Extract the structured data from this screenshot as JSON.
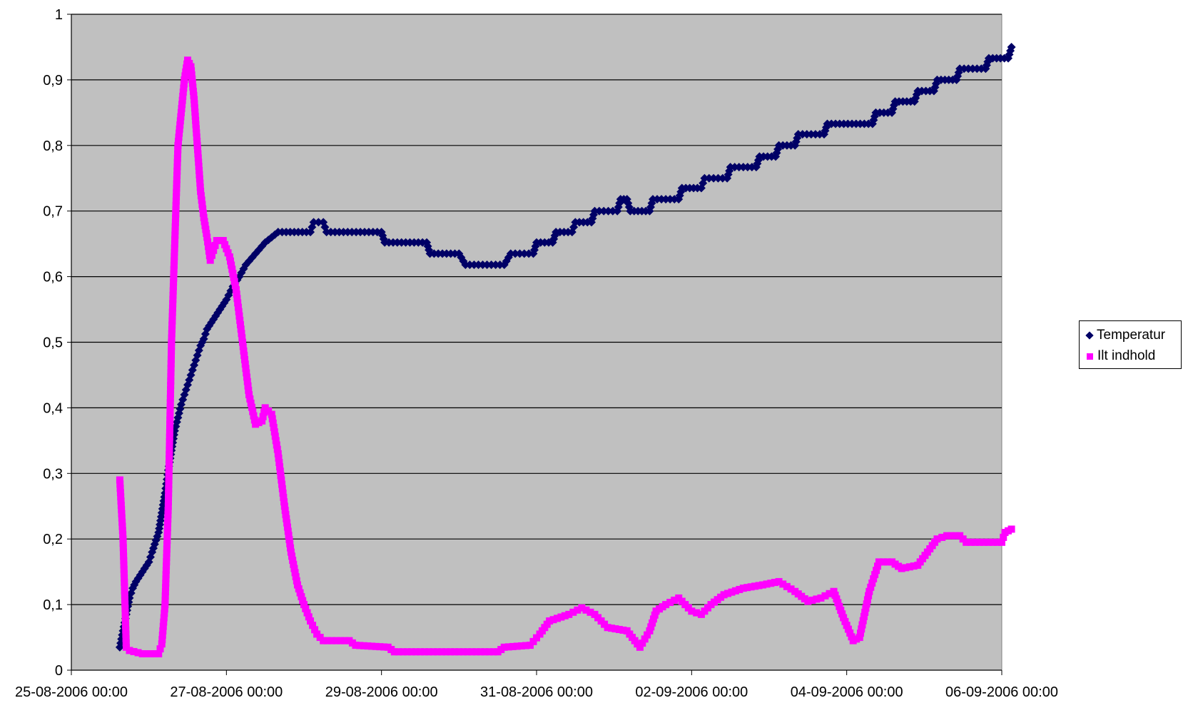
{
  "chart_data": {
    "type": "line",
    "title": "",
    "xlabel": "",
    "ylabel": "",
    "y_ticks": [
      "0",
      "0,1",
      "0,2",
      "0,3",
      "0,4",
      "0,5",
      "0,6",
      "0,7",
      "0,8",
      "0,9",
      "1"
    ],
    "ylim": [
      0,
      1
    ],
    "x_ticks": [
      "25-08-2006 00:00",
      "27-08-2006 00:00",
      "29-08-2006 00:00",
      "31-08-2006 00:00",
      "02-09-2006 00:00",
      "04-09-2006 00:00",
      "06-09-2006 00:00"
    ],
    "xlim": [
      "25-08-2006 00:00",
      "06-09-2006 00:00"
    ],
    "grid": true,
    "plot_background": "#c0c0c0",
    "legend_position": "right",
    "series": [
      {
        "name": "Temperatur",
        "color": "#000066",
        "marker": "diamond",
        "points": [
          [
            "25-08-2006 15:00",
            0.035
          ],
          [
            "25-08-2006 16:00",
            0.06
          ],
          [
            "25-08-2006 17:00",
            0.085
          ],
          [
            "25-08-2006 18:00",
            0.11
          ],
          [
            "25-08-2006 19:00",
            0.125
          ],
          [
            "25-08-2006 20:00",
            0.135
          ],
          [
            "25-08-2006 22:00",
            0.15
          ],
          [
            "26-08-2006 00:00",
            0.165
          ],
          [
            "26-08-2006 01:00",
            0.18
          ],
          [
            "26-08-2006 03:00",
            0.21
          ],
          [
            "26-08-2006 04:00",
            0.24
          ],
          [
            "26-08-2006 05:00",
            0.27
          ],
          [
            "26-08-2006 06:00",
            0.305
          ],
          [
            "26-08-2006 07:00",
            0.335
          ],
          [
            "26-08-2006 08:00",
            0.365
          ],
          [
            "26-08-2006 09:00",
            0.385
          ],
          [
            "26-08-2006 10:00",
            0.405
          ],
          [
            "26-08-2006 11:00",
            0.42
          ],
          [
            "26-08-2006 12:00",
            0.435
          ],
          [
            "26-08-2006 13:00",
            0.45
          ],
          [
            "26-08-2006 14:00",
            0.465
          ],
          [
            "26-08-2006 15:00",
            0.48
          ],
          [
            "26-08-2006 16:00",
            0.495
          ],
          [
            "26-08-2006 17:00",
            0.505
          ],
          [
            "26-08-2006 18:00",
            0.52
          ],
          [
            "26-08-2006 20:00",
            0.535
          ],
          [
            "26-08-2006 22:00",
            0.55
          ],
          [
            "27-08-2006 00:00",
            0.565
          ],
          [
            "27-08-2006 02:00",
            0.585
          ],
          [
            "27-08-2006 04:00",
            0.6
          ],
          [
            "27-08-2006 06:00",
            0.618
          ],
          [
            "27-08-2006 09:00",
            0.635
          ],
          [
            "27-08-2006 12:00",
            0.652
          ],
          [
            "27-08-2006 16:00",
            0.668
          ],
          [
            "28-08-2006 02:00",
            0.668
          ],
          [
            "28-08-2006 03:00",
            0.683
          ],
          [
            "28-08-2006 06:00",
            0.683
          ],
          [
            "28-08-2006 07:00",
            0.668
          ],
          [
            "29-08-2006 00:00",
            0.668
          ],
          [
            "29-08-2006 01:00",
            0.652
          ],
          [
            "29-08-2006 14:00",
            0.652
          ],
          [
            "29-08-2006 15:00",
            0.635
          ],
          [
            "30-08-2006 00:00",
            0.635
          ],
          [
            "30-08-2006 02:00",
            0.618
          ],
          [
            "30-08-2006 14:00",
            0.618
          ],
          [
            "30-08-2006 16:00",
            0.635
          ],
          [
            "30-08-2006 23:00",
            0.635
          ],
          [
            "31-08-2006 00:00",
            0.652
          ],
          [
            "31-08-2006 05:00",
            0.652
          ],
          [
            "31-08-2006 06:00",
            0.668
          ],
          [
            "31-08-2006 11:00",
            0.668
          ],
          [
            "31-08-2006 12:00",
            0.683
          ],
          [
            "31-08-2006 17:00",
            0.683
          ],
          [
            "31-08-2006 18:00",
            0.7
          ],
          [
            "01-09-2006 01:00",
            0.7
          ],
          [
            "01-09-2006 02:00",
            0.718
          ],
          [
            "01-09-2006 04:00",
            0.718
          ],
          [
            "01-09-2006 05:00",
            0.7
          ],
          [
            "01-09-2006 11:00",
            0.7
          ],
          [
            "01-09-2006 12:00",
            0.718
          ],
          [
            "01-09-2006 20:00",
            0.718
          ],
          [
            "01-09-2006 21:00",
            0.735
          ],
          [
            "02-09-2006 03:00",
            0.735
          ],
          [
            "02-09-2006 04:00",
            0.75
          ],
          [
            "02-09-2006 11:00",
            0.75
          ],
          [
            "02-09-2006 12:00",
            0.767
          ],
          [
            "02-09-2006 20:00",
            0.767
          ],
          [
            "02-09-2006 21:00",
            0.783
          ],
          [
            "03-09-2006 02:00",
            0.783
          ],
          [
            "03-09-2006 03:00",
            0.8
          ],
          [
            "03-09-2006 08:00",
            0.8
          ],
          [
            "03-09-2006 09:00",
            0.817
          ],
          [
            "03-09-2006 17:00",
            0.817
          ],
          [
            "03-09-2006 18:00",
            0.833
          ],
          [
            "04-09-2006 08:00",
            0.833
          ],
          [
            "04-09-2006 09:00",
            0.85
          ],
          [
            "04-09-2006 14:00",
            0.85
          ],
          [
            "04-09-2006 15:00",
            0.867
          ],
          [
            "04-09-2006 21:00",
            0.867
          ],
          [
            "04-09-2006 22:00",
            0.883
          ],
          [
            "05-09-2006 03:00",
            0.883
          ],
          [
            "05-09-2006 04:00",
            0.9
          ],
          [
            "05-09-2006 10:00",
            0.9
          ],
          [
            "05-09-2006 11:00",
            0.917
          ],
          [
            "05-09-2006 19:00",
            0.917
          ],
          [
            "05-09-2006 20:00",
            0.933
          ],
          [
            "06-09-2006 02:00",
            0.933
          ],
          [
            "06-09-2006 03:00",
            0.95
          ]
        ]
      },
      {
        "name": "Ilt indhold",
        "color": "#ff00ff",
        "marker": "square",
        "points": [
          [
            "25-08-2006 15:00",
            0.29
          ],
          [
            "25-08-2006 16:00",
            0.2
          ],
          [
            "25-08-2006 17:00",
            0.035
          ],
          [
            "25-08-2006 18:00",
            0.03
          ],
          [
            "25-08-2006 22:00",
            0.025
          ],
          [
            "26-08-2006 03:00",
            0.025
          ],
          [
            "26-08-2006 04:00",
            0.04
          ],
          [
            "26-08-2006 05:00",
            0.1
          ],
          [
            "26-08-2006 06:00",
            0.25
          ],
          [
            "26-08-2006 07:00",
            0.5
          ],
          [
            "26-08-2006 08:00",
            0.65
          ],
          [
            "26-08-2006 09:00",
            0.8
          ],
          [
            "26-08-2006 10:00",
            0.85
          ],
          [
            "26-08-2006 11:00",
            0.9
          ],
          [
            "26-08-2006 12:00",
            0.93
          ],
          [
            "26-08-2006 13:00",
            0.92
          ],
          [
            "26-08-2006 14:00",
            0.87
          ],
          [
            "26-08-2006 15:00",
            0.8
          ],
          [
            "26-08-2006 16:00",
            0.73
          ],
          [
            "26-08-2006 17:00",
            0.69
          ],
          [
            "26-08-2006 18:00",
            0.66
          ],
          [
            "26-08-2006 19:00",
            0.625
          ],
          [
            "26-08-2006 20:00",
            0.64
          ],
          [
            "26-08-2006 21:00",
            0.655
          ],
          [
            "26-08-2006 23:00",
            0.655
          ],
          [
            "27-08-2006 01:00",
            0.63
          ],
          [
            "27-08-2006 03:00",
            0.58
          ],
          [
            "27-08-2006 05:00",
            0.5
          ],
          [
            "27-08-2006 07:00",
            0.42
          ],
          [
            "27-08-2006 09:00",
            0.375
          ],
          [
            "27-08-2006 11:00",
            0.38
          ],
          [
            "27-08-2006 12:00",
            0.4
          ],
          [
            "27-08-2006 14:00",
            0.39
          ],
          [
            "27-08-2006 16:00",
            0.33
          ],
          [
            "27-08-2006 18:00",
            0.25
          ],
          [
            "27-08-2006 20:00",
            0.18
          ],
          [
            "27-08-2006 22:00",
            0.13
          ],
          [
            "28-08-2006 00:00",
            0.1
          ],
          [
            "28-08-2006 02:00",
            0.075
          ],
          [
            "28-08-2006 04:00",
            0.055
          ],
          [
            "28-08-2006 06:00",
            0.045
          ],
          [
            "28-08-2006 14:00",
            0.045
          ],
          [
            "28-08-2006 16:00",
            0.038
          ],
          [
            "29-08-2006 02:00",
            0.035
          ],
          [
            "29-08-2006 04:00",
            0.028
          ],
          [
            "30-08-2006 00:00",
            0.028
          ],
          [
            "30-08-2006 12:00",
            0.028
          ],
          [
            "30-08-2006 14:00",
            0.035
          ],
          [
            "30-08-2006 22:00",
            0.038
          ],
          [
            "31-08-2006 01:00",
            0.055
          ],
          [
            "31-08-2006 04:00",
            0.075
          ],
          [
            "31-08-2006 10:00",
            0.085
          ],
          [
            "31-08-2006 14:00",
            0.095
          ],
          [
            "31-08-2006 18:00",
            0.085
          ],
          [
            "31-08-2006 22:00",
            0.065
          ],
          [
            "01-09-2006 04:00",
            0.06
          ],
          [
            "01-09-2006 08:00",
            0.035
          ],
          [
            "01-09-2006 11:00",
            0.06
          ],
          [
            "01-09-2006 13:00",
            0.09
          ],
          [
            "01-09-2006 16:00",
            0.1
          ],
          [
            "01-09-2006 20:00",
            0.11
          ],
          [
            "02-09-2006 00:00",
            0.09
          ],
          [
            "02-09-2006 03:00",
            0.085
          ],
          [
            "02-09-2006 06:00",
            0.1
          ],
          [
            "02-09-2006 10:00",
            0.115
          ],
          [
            "02-09-2006 16:00",
            0.125
          ],
          [
            "02-09-2006 22:00",
            0.13
          ],
          [
            "03-09-2006 03:00",
            0.135
          ],
          [
            "03-09-2006 08:00",
            0.12
          ],
          [
            "03-09-2006 12:00",
            0.105
          ],
          [
            "03-09-2006 16:00",
            0.11
          ],
          [
            "03-09-2006 20:00",
            0.12
          ],
          [
            "03-09-2006 23:00",
            0.08
          ],
          [
            "04-09-2006 02:00",
            0.045
          ],
          [
            "04-09-2006 04:00",
            0.05
          ],
          [
            "04-09-2006 07:00",
            0.12
          ],
          [
            "04-09-2006 10:00",
            0.165
          ],
          [
            "04-09-2006 14:00",
            0.165
          ],
          [
            "04-09-2006 17:00",
            0.155
          ],
          [
            "04-09-2006 22:00",
            0.16
          ],
          [
            "05-09-2006 01:00",
            0.18
          ],
          [
            "05-09-2006 04:00",
            0.2
          ],
          [
            "05-09-2006 07:00",
            0.205
          ],
          [
            "05-09-2006 11:00",
            0.205
          ],
          [
            "05-09-2006 13:00",
            0.195
          ],
          [
            "06-09-2006 00:00",
            0.195
          ],
          [
            "06-09-2006 01:00",
            0.21
          ],
          [
            "06-09-2006 03:00",
            0.215
          ]
        ]
      }
    ]
  }
}
